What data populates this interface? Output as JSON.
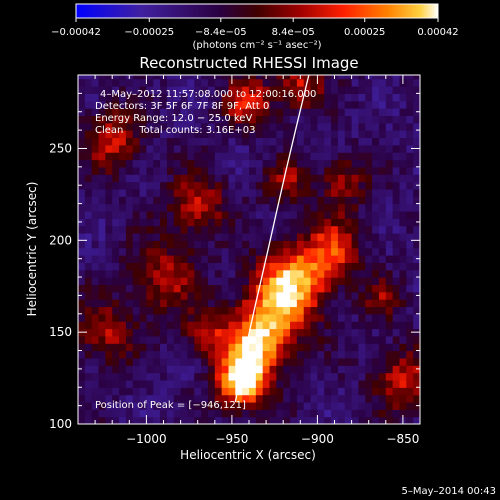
{
  "chart_data": {
    "type": "heatmap",
    "title": "Reconstructed RHESSI Image",
    "xlabel": "Heliocentric X (arcsec)",
    "ylabel": "Heliocentric Y (arcsec)",
    "xlim": [
      -1040,
      -840
    ],
    "ylim": [
      100,
      290
    ],
    "xticks": [
      -1000,
      -950,
      -900,
      -850
    ],
    "xtick_labels": [
      "−1000",
      "−950",
      "−900",
      "−850"
    ],
    "yticks": [
      100,
      150,
      200,
      250
    ],
    "ytick_labels": [
      "100",
      "150",
      "200",
      "250"
    ],
    "colorbar": {
      "range": [
        -0.00042,
        0.00042
      ],
      "ticks": [
        -0.00042,
        -0.00025,
        -8.4e-05,
        8.4e-05,
        0.00025,
        0.00042
      ],
      "tick_labels": [
        "−0.00042",
        "−0.00025",
        "−8.4e−05",
        "8.4e−05",
        "0.00025",
        "0.00042"
      ],
      "label": "(photons cm⁻² s⁻¹ asec⁻²)",
      "colors": [
        "#0000ff",
        "#4020a0",
        "#2a0040",
        "#400000",
        "#a00000",
        "#ff2000",
        "#ff8000",
        "#ffd040",
        "#ffffff"
      ]
    },
    "annotations": [
      "4–May–2012 11:57:08.000 to 12:00:16.000",
      "Detectors: 3F 5F 6F 7F 8F 9F, Att 0",
      "Energy Range: 12.0 − 25.0 keV",
      "Clean     Total counts: 3.16E+03",
      "Position of Peak = [−946,121]"
    ],
    "peak": [
      -946,
      121
    ],
    "limb_curve": [
      [
        -948,
        112
      ],
      [
        -940,
        150
      ],
      [
        -930,
        190
      ],
      [
        -918,
        240
      ],
      [
        -905,
        290
      ]
    ],
    "sources": [
      {
        "x": -945,
        "y": 122,
        "sigma": 10,
        "amp": 1.0
      },
      {
        "x": -937,
        "y": 140,
        "sigma": 12,
        "amp": 0.85
      },
      {
        "x": -925,
        "y": 162,
        "sigma": 15,
        "amp": 0.75
      },
      {
        "x": -912,
        "y": 180,
        "sigma": 14,
        "amp": 0.7
      },
      {
        "x": -890,
        "y": 195,
        "sigma": 12,
        "amp": 0.6
      },
      {
        "x": -885,
        "y": 232,
        "sigma": 10,
        "amp": 0.45
      },
      {
        "x": -918,
        "y": 232,
        "sigma": 9,
        "amp": 0.45
      },
      {
        "x": -970,
        "y": 220,
        "sigma": 12,
        "amp": 0.55
      },
      {
        "x": -990,
        "y": 180,
        "sigma": 14,
        "amp": 0.5
      },
      {
        "x": -1020,
        "y": 255,
        "sigma": 12,
        "amp": 0.55
      },
      {
        "x": -1025,
        "y": 150,
        "sigma": 12,
        "amp": 0.5
      },
      {
        "x": -965,
        "y": 150,
        "sigma": 9,
        "amp": 0.5
      },
      {
        "x": -940,
        "y": 275,
        "sigma": 10,
        "amp": 0.6
      },
      {
        "x": -910,
        "y": 285,
        "sigma": 10,
        "amp": 0.55
      },
      {
        "x": -850,
        "y": 125,
        "sigma": 12,
        "amp": 0.55
      },
      {
        "x": -862,
        "y": 168,
        "sigma": 8,
        "amp": 0.4
      }
    ]
  },
  "footer": {
    "date": "5–May–2014 00:43"
  }
}
